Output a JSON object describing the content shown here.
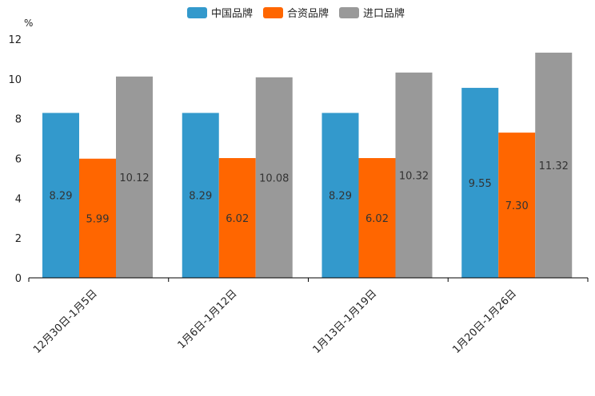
{
  "chart_data": {
    "type": "bar",
    "title": "",
    "xlabel": "",
    "ylabel": "%",
    "ylim": [
      0,
      12
    ],
    "yticks": [
      0,
      2,
      4,
      6,
      8,
      10,
      12
    ],
    "categories": [
      "12月30日-1月5日",
      "1月6日-1月12日",
      "1月13日-1月19日",
      "1月20日-1月26日"
    ],
    "series": [
      {
        "name": "中国品牌",
        "color": "#3399cc",
        "values": [
          8.29,
          8.29,
          8.29,
          9.55
        ],
        "labels": [
          "8.29",
          "8.29",
          "8.29",
          "9.55"
        ]
      },
      {
        "name": "合资品牌",
        "color": "#ff6600",
        "values": [
          5.99,
          6.02,
          6.02,
          7.3
        ],
        "labels": [
          "5.99",
          "6.02",
          "6.02",
          "7.30"
        ]
      },
      {
        "name": "进口品牌",
        "color": "#999999",
        "values": [
          10.12,
          10.08,
          10.32,
          11.32
        ],
        "labels": [
          "10.12",
          "10.08",
          "10.32",
          "11.32"
        ]
      }
    ],
    "legend_position": "top-center",
    "grid": false
  }
}
